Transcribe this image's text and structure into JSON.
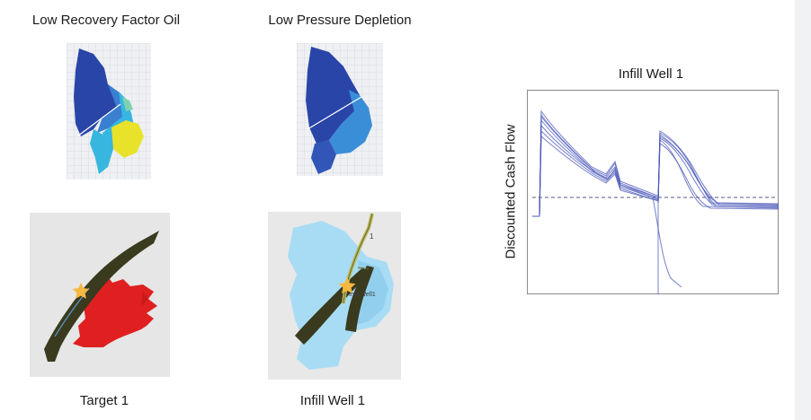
{
  "panels": {
    "top_left_title": "Low Recovery Factor Oil",
    "top_mid_title": "Low Pressure Depletion",
    "bottom_left_caption": "Target 1",
    "bottom_mid_caption": "Infill Well 1",
    "well_tag": "InfillWell1",
    "well_number": "1"
  },
  "chart": {
    "title": "Infill Well 1",
    "ylabel": "Discounted Cash Flow"
  },
  "colors": {
    "reservoir_blue": "#2a45a8",
    "high_oil_yellow": "#e8e22a",
    "cyan": "#37b6e0",
    "target_red": "#e02020",
    "fault_dark": "#3a3a1e",
    "curve": "#4a55b8",
    "star": "#f5b840"
  }
}
